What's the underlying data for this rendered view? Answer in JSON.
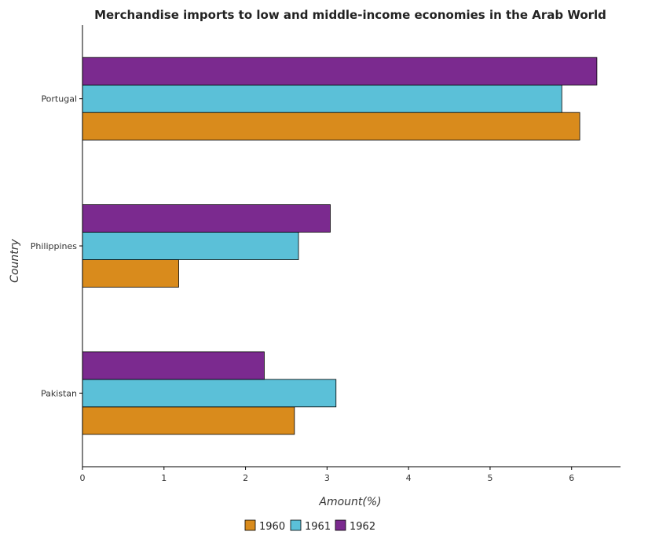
{
  "chart_data": {
    "type": "bar",
    "orientation": "horizontal",
    "title": "Merchandise imports to low and middle-income economies in the Arab World",
    "xlabel": "Amount(%)",
    "ylabel": "Country",
    "categories": [
      "Pakistan",
      "Philippines",
      "Portugal"
    ],
    "series": [
      {
        "name": "1960",
        "color": "#d98b1c",
        "values": [
          2.6,
          1.18,
          6.1
        ]
      },
      {
        "name": "1961",
        "color": "#5bc0d8",
        "values": [
          3.11,
          2.65,
          5.88
        ]
      },
      {
        "name": "1962",
        "color": "#7b2a8f",
        "values": [
          2.23,
          3.04,
          6.31
        ]
      }
    ],
    "xlim": [
      0,
      6.6
    ],
    "xticks": [
      0,
      1,
      2,
      3,
      4,
      5,
      6
    ],
    "xtick_labels": [
      "0",
      "1",
      "2",
      "3",
      "4",
      "5",
      "6"
    ],
    "grid": false,
    "legend_position": "bottom-center"
  }
}
